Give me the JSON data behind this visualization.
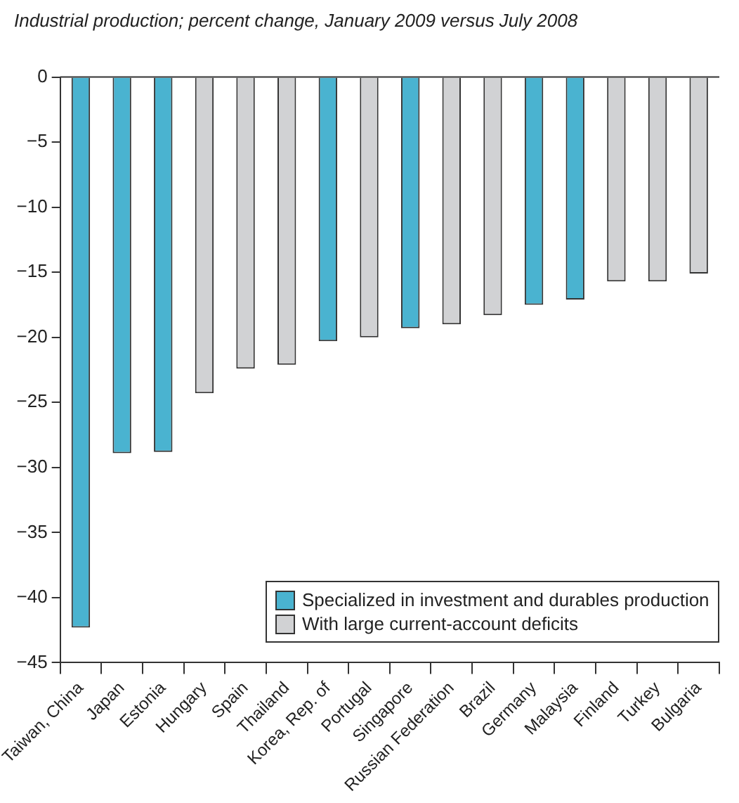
{
  "chart_data": {
    "type": "bar",
    "title": "Industrial production; percent change, January 2009 versus July 2008",
    "categories": [
      "Taiwan, China",
      "Japan",
      "Estonia",
      "Hungary",
      "Spain",
      "Thailand",
      "Korea, Rep. of",
      "Portugal",
      "Singapore",
      "Russian Federation",
      "Brazil",
      "Germany",
      "Malaysia",
      "Finland",
      "Turkey",
      "Bulgaria"
    ],
    "series": [
      {
        "name": "Specialized in investment and durables production",
        "color": "#4ab3d0",
        "values": [
          -42.3,
          -28.9,
          -28.8,
          null,
          null,
          null,
          -20.3,
          null,
          -19.3,
          null,
          null,
          -17.5,
          -17.1,
          null,
          null,
          null
        ]
      },
      {
        "name": "With large current-account deficits",
        "color": "#d1d2d4",
        "values": [
          null,
          null,
          null,
          -24.3,
          -22.4,
          -22.1,
          null,
          -20.0,
          null,
          -19.0,
          -18.3,
          null,
          null,
          -15.7,
          -15.7,
          -15.1
        ]
      }
    ],
    "ylim": [
      -45,
      0
    ],
    "yticks": [
      -45,
      -40,
      -35,
      -30,
      -25,
      -20,
      -15,
      -10,
      -5,
      0
    ],
    "grid": false,
    "legend": "bottom right"
  }
}
